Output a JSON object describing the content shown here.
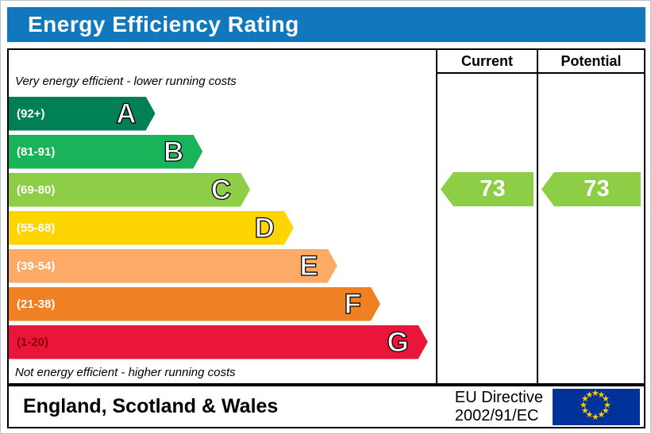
{
  "title": "Energy Efficiency Rating",
  "columns": {
    "current": "Current",
    "potential": "Potential"
  },
  "top_note": "Very energy efficient - lower running costs",
  "bottom_note": "Not energy efficient - higher running costs",
  "chart_data": {
    "type": "bar",
    "subtype": "energy-efficiency-rating-bands",
    "title": "Energy Efficiency Rating",
    "bands": [
      {
        "letter": "A",
        "range": "(92+)",
        "color": "#008054",
        "label_color": "#ffffff",
        "width_pct": 34.3
      },
      {
        "letter": "B",
        "range": "(81-91)",
        "color": "#19b459",
        "label_color": "#ffffff",
        "width_pct": 45.4
      },
      {
        "letter": "C",
        "range": "(69-80)",
        "color": "#8dce46",
        "label_color": "#ffffff",
        "width_pct": 56.5
      },
      {
        "letter": "D",
        "range": "(55-68)",
        "color": "#ffd500",
        "label_color": "#ffffff",
        "width_pct": 66.7
      },
      {
        "letter": "E",
        "range": "(39-54)",
        "color": "#fcaa65",
        "label_color": "#ffffff",
        "width_pct": 76.9
      },
      {
        "letter": "F",
        "range": "(21-38)",
        "color": "#ef8023",
        "label_color": "#ffffff",
        "width_pct": 87.0
      },
      {
        "letter": "G",
        "range": "(1-20)",
        "color": "#e9153b",
        "label_color": "#8b0000",
        "width_pct": 98.1
      }
    ],
    "current": {
      "value": "73",
      "band": "C",
      "color": "#8dce46"
    },
    "potential": {
      "value": "73",
      "band": "C",
      "color": "#8dce46"
    }
  },
  "footer": {
    "region": "England, Scotland & Wales",
    "directive_line1": "EU Directive",
    "directive_line2": "2002/91/EC",
    "flag_colors": {
      "background": "#003399",
      "stars": "#ffcc00"
    }
  },
  "theme": {
    "title_bg": "#1278be",
    "title_text": "#ffffff",
    "border": "#000000"
  }
}
